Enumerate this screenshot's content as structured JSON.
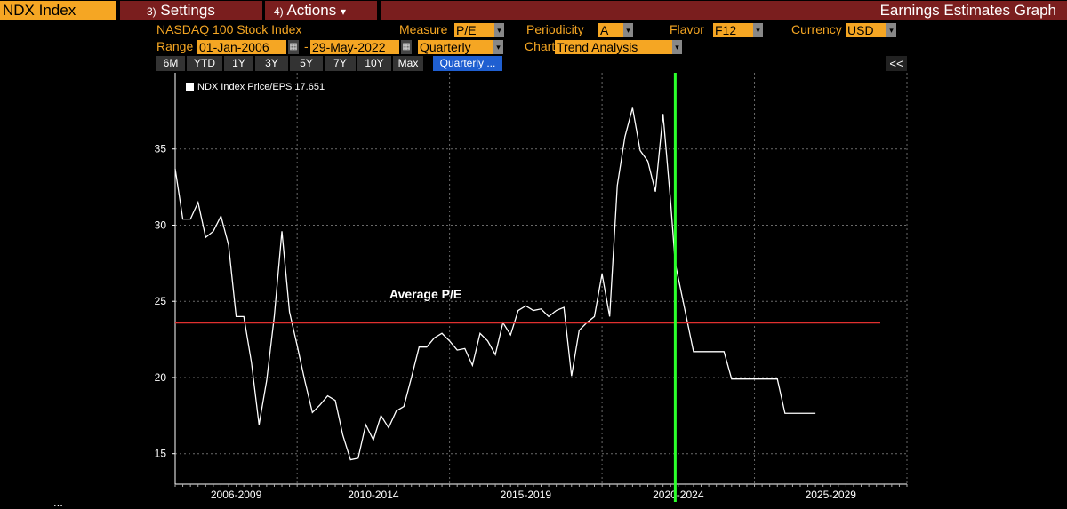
{
  "topbar": {
    "ticker": "NDX Index",
    "settings_num": "3)",
    "settings_label": "Settings",
    "actions_num": "4)",
    "actions_label": "Actions",
    "actions_caret": "▾",
    "title": "Earnings Estimates Graph"
  },
  "header": {
    "security_name": "NASDAQ 100 Stock Index",
    "measure_label": "Measure",
    "measure_value": "P/E",
    "periodicity_label": "Periodicity",
    "periodicity_value": "A",
    "flavor_label": "Flavor",
    "flavor_value": "F12",
    "currency_label": "Currency",
    "currency_value": "USD",
    "range_label": "Range",
    "range_start": "01-Jan-2006",
    "range_sep": "-",
    "range_end": "29-May-2022",
    "range_freq": "Quarterly",
    "chart_label": "Chart",
    "chart_value": "Trend Analysis"
  },
  "period_buttons": [
    "6M",
    "YTD",
    "1Y",
    "3Y",
    "5Y",
    "7Y",
    "10Y",
    "Max"
  ],
  "period_selected": "Quarterly ...",
  "collapse_label": "<<",
  "legend": {
    "text": "NDX Index Price/EPS 17.651"
  },
  "annotation": "Average P/E",
  "bottom_text": "...",
  "colors": {
    "accent": "#f5a623",
    "titlebar": "#7a1e1e",
    "average_line": "#e0302f",
    "current_marker": "#2bff2b",
    "series": "#ffffff"
  },
  "chart_data": {
    "type": "line",
    "title": "",
    "xlabel": "",
    "ylabel": "",
    "x_range": [
      2006.0,
      2030.0
    ],
    "ylim": [
      13,
      40
    ],
    "y_ticks": [
      15,
      20,
      25,
      30,
      35
    ],
    "x_groups": [
      "2006-2009",
      "2010-2014",
      "2015-2019",
      "2020-2024",
      "2025-2029"
    ],
    "grid": true,
    "legend_position": "top-left",
    "series": [
      {
        "name": "NDX Index Price/EPS",
        "last_value": 17.651,
        "x": [
          2006.0,
          2006.25,
          2006.5,
          2006.75,
          2007.0,
          2007.25,
          2007.5,
          2007.75,
          2008.0,
          2008.25,
          2008.5,
          2008.75,
          2009.0,
          2009.25,
          2009.5,
          2009.75,
          2010.0,
          2010.25,
          2010.5,
          2010.75,
          2011.0,
          2011.25,
          2011.5,
          2011.75,
          2012.0,
          2012.25,
          2012.5,
          2012.75,
          2013.0,
          2013.25,
          2013.5,
          2013.75,
          2014.0,
          2014.25,
          2014.5,
          2014.75,
          2015.0,
          2015.25,
          2015.5,
          2015.75,
          2016.0,
          2016.25,
          2016.5,
          2016.75,
          2017.0,
          2017.25,
          2017.5,
          2017.75,
          2018.0,
          2018.25,
          2018.5,
          2018.75,
          2019.0,
          2019.25,
          2019.5,
          2019.75,
          2020.0,
          2020.25,
          2020.5,
          2020.75,
          2021.0,
          2021.25,
          2021.5,
          2021.75,
          2022.0,
          2022.25,
          2022.4,
          2023.0,
          2024.0,
          2024.25,
          2025.0,
          2025.75,
          2026.0,
          2027.0
        ],
        "values": [
          33.7,
          30.4,
          30.4,
          31.5,
          29.2,
          29.6,
          30.6,
          28.7,
          24.0,
          24.0,
          21.0,
          16.9,
          19.8,
          24.0,
          29.6,
          24.3,
          22.1,
          19.8,
          17.7,
          18.2,
          18.8,
          18.5,
          16.2,
          14.6,
          14.7,
          16.9,
          15.9,
          17.5,
          16.7,
          17.8,
          18.1,
          20.0,
          22.0,
          22.0,
          22.6,
          22.9,
          22.4,
          21.8,
          21.9,
          20.8,
          22.9,
          22.4,
          21.5,
          23.6,
          22.8,
          24.4,
          24.7,
          24.4,
          24.5,
          24.0,
          24.4,
          24.6,
          20.1,
          23.1,
          23.6,
          24.0,
          26.8,
          24.0,
          32.6,
          35.8,
          37.7,
          34.9,
          34.2,
          32.2,
          37.3,
          31.5,
          27.5,
          21.7,
          21.7,
          19.9,
          19.9,
          19.9,
          17.65,
          17.65
        ]
      }
    ],
    "average_pe": 23.6,
    "current_marker_x": 2022.4
  }
}
